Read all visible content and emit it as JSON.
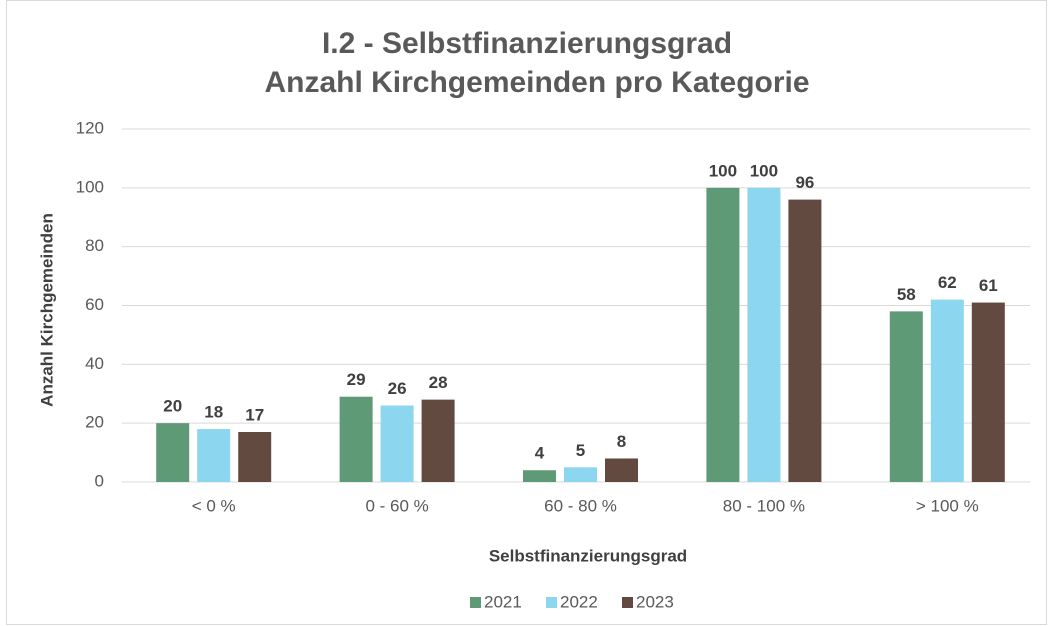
{
  "chart_data": {
    "type": "bar",
    "title": "I.2 - Selbstfinanzierungsgrad",
    "subtitle": "Anzahl Kirchgemeinden pro Kategorie",
    "x_label": "Selbstfinanzierungsgrad",
    "y_label": "Anzahl Kirchgemeinden",
    "categories": [
      "< 0 %",
      "0 - 60 %",
      "60 - 80 %",
      "80 - 100 %",
      "> 100 %"
    ],
    "series": [
      {
        "name": "2021",
        "color": "#5f9a77",
        "values": [
          20,
          29,
          4,
          100,
          58
        ]
      },
      {
        "name": "2022",
        "color": "#8dd6ef",
        "values": [
          18,
          26,
          5,
          100,
          62
        ]
      },
      {
        "name": "2023",
        "color": "#634a41",
        "values": [
          17,
          28,
          8,
          96,
          61
        ]
      }
    ],
    "ylim": [
      0,
      120
    ],
    "yticks": [
      0,
      20,
      40,
      60,
      80,
      100,
      120
    ],
    "grid": true,
    "legend": "bottom"
  }
}
